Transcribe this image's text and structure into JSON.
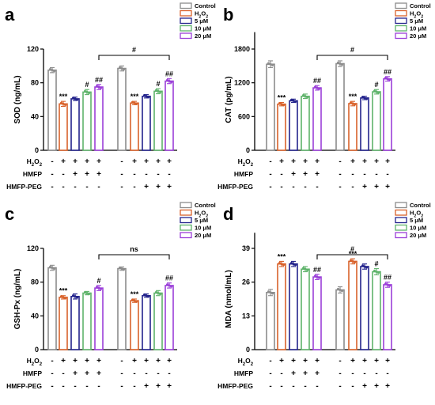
{
  "figure": {
    "row_labels": [
      "H2O2",
      "HMFP",
      "HMFP-PEG"
    ],
    "columns": [
      [
        "-",
        "-",
        "-"
      ],
      [
        "+",
        "-",
        "-"
      ],
      [
        "+",
        "+",
        "-"
      ],
      [
        "+",
        "+",
        "-"
      ],
      [
        "+",
        "+",
        "-"
      ],
      [
        "-",
        "-",
        "-"
      ],
      [
        "+",
        "-",
        "-"
      ],
      [
        "+",
        "-",
        "+"
      ],
      [
        "+",
        "-",
        "+"
      ],
      [
        "+",
        "-",
        "+"
      ]
    ],
    "legend": [
      "Control",
      "H2O2",
      "5 μM",
      "10 μM",
      "20 μM"
    ],
    "colors": [
      "#8c8c8c",
      "#d9622b",
      "#23238c",
      "#5fb36b",
      "#9b3fd9"
    ]
  },
  "chart_data": [
    {
      "panel": "a",
      "type": "bar",
      "ylabel": "SOD (ng/mL)",
      "ylim": [
        0,
        120
      ],
      "yticks": [
        0,
        40,
        80,
        120
      ],
      "values": [
        95,
        55,
        61,
        69,
        75,
        97,
        56,
        64,
        70,
        82
      ],
      "errors": [
        3,
        3,
        2,
        3,
        3,
        3,
        2,
        2,
        3,
        3
      ],
      "annotations": [
        "",
        "***",
        "",
        "#",
        "##",
        "",
        "***",
        "",
        "#",
        "##"
      ],
      "bracket": "#"
    },
    {
      "panel": "b",
      "type": "bar",
      "ylabel": "CAT (pg/mL)",
      "ylim": [
        0,
        2100
      ],
      "yticks": [
        0,
        600,
        1200,
        1800
      ],
      "values": [
        1530,
        820,
        880,
        960,
        1110,
        1540,
        830,
        930,
        1040,
        1270
      ],
      "errors": [
        60,
        30,
        30,
        40,
        40,
        50,
        40,
        30,
        40,
        40
      ],
      "annotations": [
        "",
        "***",
        "",
        "",
        "##",
        "",
        "***",
        "",
        "#",
        "##"
      ],
      "bracket": "#"
    },
    {
      "panel": "c",
      "type": "bar",
      "ylabel": "GSH-Px (ng/mL)",
      "ylim": [
        0,
        120
      ],
      "yticks": [
        0,
        40,
        80,
        120
      ],
      "values": [
        97,
        62,
        63,
        67,
        73,
        96,
        58,
        64,
        67,
        76
      ],
      "errors": [
        3,
        2,
        3,
        2,
        3,
        2,
        2,
        2,
        3,
        3
      ],
      "annotations": [
        "",
        "***",
        "",
        "",
        "#",
        "",
        "***",
        "",
        "",
        "##"
      ],
      "bracket": "ns"
    },
    {
      "panel": "d",
      "type": "bar",
      "ylabel": "MDA (nmol/mL)",
      "ylim": [
        0,
        45
      ],
      "yticks": [
        0,
        13,
        26,
        39
      ],
      "values": [
        22,
        33,
        33,
        31,
        28,
        23,
        34,
        32,
        30,
        25
      ],
      "errors": [
        1.2,
        1,
        1,
        1,
        1,
        1.2,
        1,
        1,
        1.2,
        1
      ],
      "annotations": [
        "",
        "***",
        "",
        "",
        "##",
        "",
        "***",
        "",
        "#",
        "##"
      ],
      "bracket": "#"
    }
  ]
}
